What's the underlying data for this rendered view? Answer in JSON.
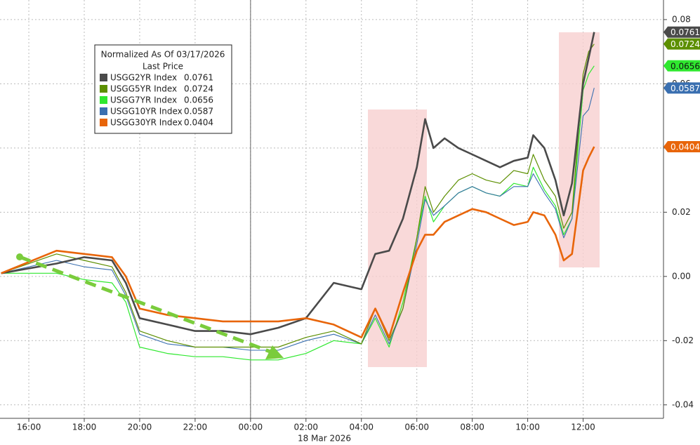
{
  "chart_data": {
    "type": "line",
    "legend_title": "Normalized As Of 03/17/2026",
    "legend_subtitle": "Last Price",
    "date_label": "18 Mar 2026",
    "x": [
      -1,
      1,
      2,
      3,
      3.5,
      4,
      5,
      6,
      7,
      8,
      9,
      10,
      11,
      12,
      12.5,
      13,
      13.5,
      14,
      14.3,
      14.6,
      15,
      15.5,
      16,
      16.5,
      17,
      17.5,
      18,
      18.2,
      18.6,
      19,
      19.3,
      19.6,
      20,
      20.2,
      20.4
    ],
    "xlim": [
      -1.04,
      22.9
    ],
    "xticks": [
      {
        "value": 0,
        "label": "16:00"
      },
      {
        "value": 2,
        "label": "18:00"
      },
      {
        "value": 4,
        "label": "20:00"
      },
      {
        "value": 6,
        "label": "22:00"
      },
      {
        "value": 8,
        "label": "00:00"
      },
      {
        "value": 10,
        "label": "02:00"
      },
      {
        "value": 12,
        "label": "04:00"
      },
      {
        "value": 14,
        "label": "06:00"
      },
      {
        "value": 16,
        "label": "08:00"
      },
      {
        "value": 18,
        "label": "10:00"
      },
      {
        "value": 20,
        "label": "12:00"
      }
    ],
    "ylim": [
      -0.0442,
      0.0861
    ],
    "yticks": [
      0.08,
      0.06,
      0.04,
      0.02,
      {
        "value": 0,
        "label": "0.00"
      },
      -0.02,
      -0.04
    ],
    "grid": true,
    "series": [
      {
        "name": "USGG2YR Index",
        "color": "#4a4a4a",
        "values": [
          0.001,
          0.004,
          0.006,
          0.005,
          -0.002,
          -0.013,
          -0.015,
          -0.017,
          -0.017,
          -0.018,
          -0.016,
          -0.013,
          -0.002,
          -0.004,
          0.007,
          0.008,
          0.018,
          0.034,
          0.049,
          0.04,
          0.043,
          0.04,
          0.038,
          0.036,
          0.034,
          0.036,
          0.037,
          0.044,
          0.04,
          0.03,
          0.019,
          0.029,
          0.06,
          0.068,
          0.0761
        ]
      },
      {
        "name": "USGG5YR Index",
        "color": "#5c8f00",
        "values": [
          0.001,
          0.007,
          0.005,
          0.003,
          -0.005,
          -0.017,
          -0.02,
          -0.022,
          -0.022,
          -0.022,
          -0.022,
          -0.019,
          -0.017,
          -0.021,
          -0.01,
          -0.02,
          -0.01,
          0.012,
          0.028,
          0.02,
          0.025,
          0.03,
          0.032,
          0.03,
          0.029,
          0.033,
          0.032,
          0.038,
          0.03,
          0.025,
          0.015,
          0.02,
          0.063,
          0.07,
          0.0724
        ]
      },
      {
        "name": "USGG7YR Index",
        "color": "#2fe82f",
        "values": [
          0.001,
          0.001,
          -0.001,
          -0.002,
          -0.008,
          -0.022,
          -0.024,
          -0.025,
          -0.025,
          -0.026,
          -0.026,
          -0.024,
          -0.02,
          -0.021,
          -0.013,
          -0.022,
          -0.008,
          0.012,
          0.025,
          0.017,
          0.022,
          0.026,
          0.028,
          0.026,
          0.025,
          0.029,
          0.028,
          0.034,
          0.027,
          0.022,
          0.013,
          0.018,
          0.058,
          0.063,
          0.0656
        ]
      },
      {
        "name": "USGG10YR Index",
        "color": "#3a6fb0",
        "values": [
          0.001,
          0.005,
          0.003,
          0.002,
          -0.006,
          -0.018,
          -0.021,
          -0.022,
          -0.022,
          -0.023,
          -0.023,
          -0.02,
          -0.018,
          -0.021,
          -0.012,
          -0.021,
          -0.01,
          0.01,
          0.024,
          0.019,
          0.022,
          0.026,
          0.028,
          0.026,
          0.025,
          0.028,
          0.028,
          0.032,
          0.026,
          0.021,
          0.012,
          0.018,
          0.05,
          0.052,
          0.0587
        ]
      },
      {
        "name": "USGG30YR Index",
        "color": "#e8650a",
        "values": [
          0.001,
          0.008,
          0.007,
          0.006,
          0.0,
          -0.01,
          -0.012,
          -0.013,
          -0.014,
          -0.014,
          -0.014,
          -0.013,
          -0.015,
          -0.019,
          -0.01,
          -0.019,
          -0.005,
          0.008,
          0.013,
          0.013,
          0.017,
          0.019,
          0.021,
          0.02,
          0.018,
          0.016,
          0.017,
          0.02,
          0.019,
          0.013,
          0.005,
          0.007,
          0.033,
          0.037,
          0.0404
        ]
      }
    ]
  }
}
